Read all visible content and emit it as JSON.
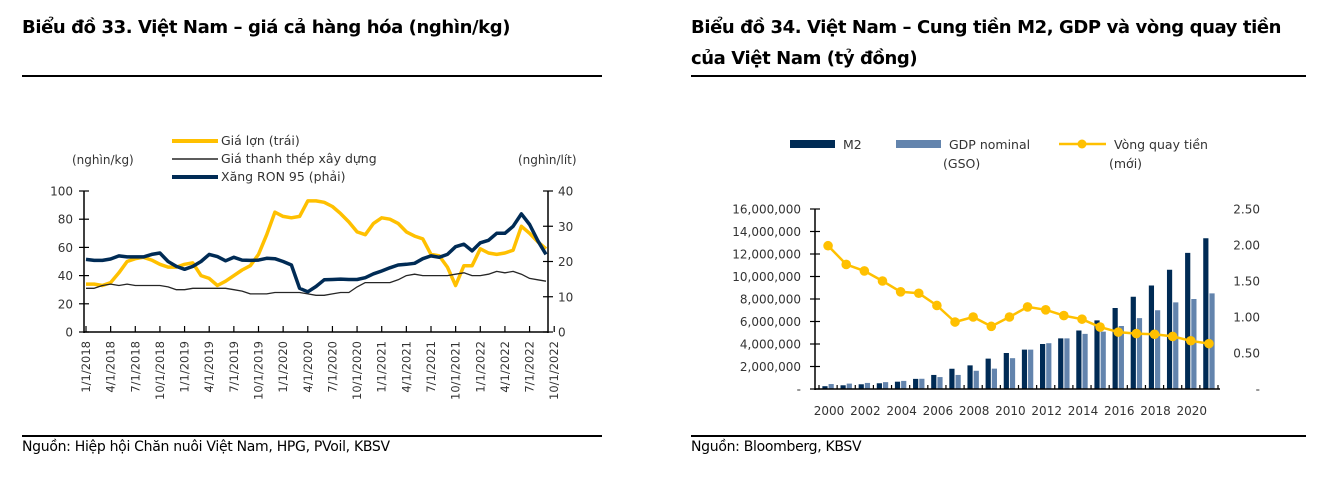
{
  "left": {
    "title": "Biểu đồ 33. Việt Nam – giá cả hàng hóa (nghìn/kg)",
    "source": "Nguồn: Hiệp hội Chăn nuôi Việt Nam, HPG, PVoil, KBSV"
  },
  "right": {
    "title": "Biểu đồ 34. Việt Nam – Cung tiền M2, GDP và vòng quay tiền của Việt Nam (tỷ đồng)",
    "source": "Nguồn: Bloomberg, KBSV"
  },
  "chart_data": [
    {
      "type": "line",
      "title": "Biểu đồ 33. Việt Nam – giá cả hàng hóa (nghìn/kg)",
      "ylabel_left": "(nghìn/kg)",
      "ylabel_right": "(nghìn/lít)",
      "ylim_left": [
        0,
        100
      ],
      "ylim_right": [
        0,
        40
      ],
      "yticks_left": [
        "0",
        "20",
        "40",
        "60",
        "80",
        "100"
      ],
      "yticks_right": [
        "0",
        "10",
        "20",
        "30",
        "40"
      ],
      "xticks": [
        "1/1/2018",
        "4/1/2018",
        "7/1/2018",
        "10/1/2018",
        "1/1/2019",
        "4/1/2019",
        "7/1/2019",
        "10/1/2019",
        "1/1/2020",
        "4/1/2020",
        "7/1/2020",
        "10/1/2020",
        "1/1/2021",
        "4/1/2021",
        "7/1/2021",
        "10/1/2021",
        "1/1/2022",
        "4/1/2022",
        "7/1/2022",
        "10/1/2022"
      ],
      "x_months_from_jan2018": [
        0,
        1,
        2,
        3,
        4,
        5,
        6,
        7,
        8,
        9,
        10,
        11,
        12,
        13,
        14,
        15,
        16,
        17,
        18,
        19,
        20,
        21,
        22,
        23,
        24,
        25,
        26,
        27,
        28,
        29,
        30,
        31,
        32,
        33,
        34,
        35,
        36,
        37,
        38,
        39,
        40,
        41,
        42,
        43,
        44,
        45,
        46,
        47,
        48,
        49,
        50,
        51,
        52,
        53,
        54,
        55,
        56
      ],
      "legend_position": "top-center",
      "grid": false,
      "series": [
        {
          "name": "Giá lợn (trái)",
          "axis": "left",
          "color": "#FFC000",
          "values": [
            34,
            34,
            33,
            35,
            42,
            50,
            52,
            53,
            51,
            48,
            46,
            46,
            48,
            49,
            40,
            38,
            33,
            36,
            40,
            44,
            47,
            55,
            69,
            85,
            82,
            81,
            82,
            93,
            93,
            92,
            89,
            84,
            78,
            71,
            69,
            77,
            81,
            80,
            77,
            71,
            68,
            66,
            55,
            54,
            46,
            33,
            47,
            47,
            59,
            56,
            55,
            56,
            58,
            75,
            70,
            64,
            59
          ]
        },
        {
          "name": "Giá thanh thép xây dựng",
          "axis": "left",
          "color": "#262626",
          "values": [
            31,
            31,
            33,
            34,
            33,
            34,
            33,
            33,
            33,
            33,
            32,
            30,
            30,
            31,
            31,
            31,
            31,
            31,
            30,
            29,
            27,
            27,
            27,
            28,
            28,
            28,
            28,
            27,
            26,
            26,
            27,
            28,
            28,
            32,
            35,
            35,
            35,
            35,
            37,
            40,
            41,
            40,
            40,
            40,
            40,
            41,
            42,
            40,
            40,
            41,
            43,
            42,
            43,
            41,
            38,
            37,
            36
          ]
        },
        {
          "name": "Xăng RON 95 (phải)",
          "axis": "right",
          "color": "#002B55",
          "values": [
            20.6,
            20.3,
            20.3,
            20.7,
            21.6,
            21.3,
            21.3,
            21.3,
            22.0,
            22.4,
            20.0,
            18.6,
            17.8,
            18.6,
            20.0,
            22.0,
            21.4,
            20.2,
            21.2,
            20.4,
            20.3,
            20.4,
            20.9,
            20.8,
            20.0,
            19.0,
            12.4,
            11.4,
            12.9,
            14.8,
            14.9,
            15.0,
            14.9,
            14.9,
            15.4,
            16.5,
            17.3,
            18.2,
            19.0,
            19.2,
            19.5,
            20.8,
            21.6,
            21.2,
            22.0,
            24.2,
            24.9,
            23.0,
            25.3,
            26.0,
            28.0,
            28.0,
            30.0,
            33.5,
            30.5,
            25.9,
            22.0
          ]
        }
      ]
    },
    {
      "type": "bar",
      "title": "Biểu đồ 34. Việt Nam – Cung tiền M2, GDP và vòng quay tiền của Việt Nam (tỷ đồng)",
      "categories": [
        "2000",
        "2001",
        "2002",
        "2003",
        "2004",
        "2005",
        "2006",
        "2007",
        "2008",
        "2009",
        "2010",
        "2011",
        "2012",
        "2013",
        "2014",
        "2015",
        "2016",
        "2017",
        "2018",
        "2019",
        "2020",
        "2021"
      ],
      "xtick_labels": [
        "2000",
        "2002",
        "2004",
        "2006",
        "2008",
        "2010",
        "2012",
        "2014",
        "2016",
        "2018",
        "2020"
      ],
      "ylim_left": [
        0,
        16000000
      ],
      "ylim_right": [
        0,
        2.5
      ],
      "yticks_left": [
        "-",
        "2,000,000",
        "4,000,000",
        "6,000,000",
        "8,000,000",
        "10,000,000",
        "12,000,000",
        "14,000,000",
        "16,000,000"
      ],
      "yticks_right": [
        "-",
        "0.50",
        "1.00",
        "1.50",
        "2.00",
        "2.50"
      ],
      "legend_position": "top",
      "grid": false,
      "series": [
        {
          "name": "M2",
          "kind": "bar",
          "axis": "left",
          "color": "#002B55",
          "values": [
            250000,
            330000,
            420000,
            510000,
            650000,
            900000,
            1250000,
            1800000,
            2100000,
            2700000,
            3200000,
            3500000,
            4000000,
            4500000,
            5200000,
            6100000,
            7200000,
            8200000,
            9200000,
            10600000,
            12100000,
            13400000
          ]
        },
        {
          "name": "GDP nominal (GSO)",
          "kind": "bar",
          "axis": "left",
          "color": "#6384AD",
          "values": [
            440000,
            480000,
            540000,
            610000,
            720000,
            910000,
            1060000,
            1250000,
            1620000,
            1810000,
            2740000,
            3500000,
            4070000,
            4500000,
            4900000,
            5100000,
            5600000,
            6300000,
            7000000,
            7700000,
            8000000,
            8500000
          ]
        },
        {
          "name": "Vòng quay tiền (mới)",
          "kind": "line",
          "axis": "right",
          "color": "#FFC000",
          "values": [
            1.99,
            1.73,
            1.64,
            1.5,
            1.35,
            1.33,
            1.16,
            0.93,
            1.0,
            0.87,
            1.0,
            1.14,
            1.1,
            1.02,
            0.97,
            0.86,
            0.79,
            0.77,
            0.76,
            0.73,
            0.67,
            0.63
          ]
        }
      ]
    }
  ]
}
